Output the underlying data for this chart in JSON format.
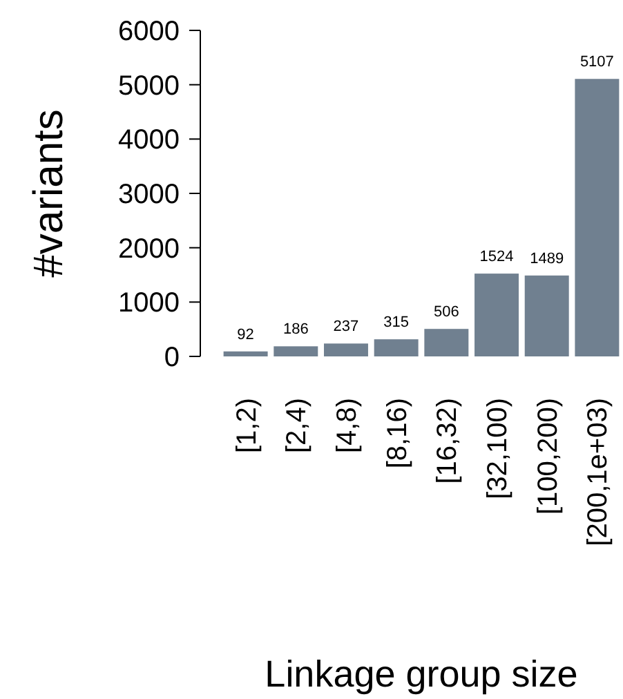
{
  "chart_data": {
    "type": "bar",
    "xlabel": "Linkage group size",
    "ylabel": "#variants",
    "categories": [
      "[1,2)",
      "[2,4)",
      "[4,8)",
      "[8,16)",
      "[16,32)",
      "[32,100)",
      "[100,200)",
      "[200,1e+03)"
    ],
    "values": [
      92,
      186,
      237,
      315,
      506,
      1524,
      1489,
      5107
    ],
    "color": "#708090",
    "ylim": [
      0,
      6000
    ],
    "yticks": [
      0,
      1000,
      2000,
      3000,
      4000,
      5000,
      6000
    ],
    "data_labels": true
  }
}
